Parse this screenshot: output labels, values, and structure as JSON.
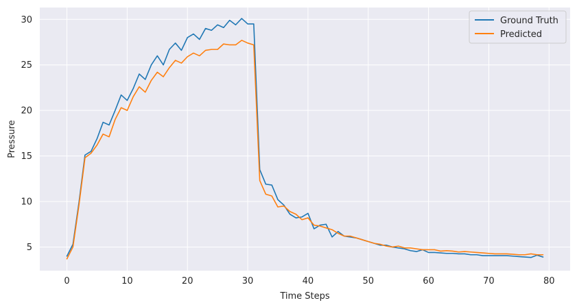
{
  "chart_data": {
    "type": "line",
    "title": "",
    "xlabel": "Time Steps",
    "ylabel": "Pressure",
    "xlim": [
      -4.5,
      83.5
    ],
    "ylim": [
      2.4,
      31.3
    ],
    "xticks": [
      0,
      10,
      20,
      30,
      40,
      50,
      60,
      70,
      80
    ],
    "yticks": [
      5,
      10,
      15,
      20,
      25,
      30
    ],
    "grid": true,
    "background": "#eaeaf2",
    "legend_position": "top-right",
    "series": [
      {
        "name": "Ground Truth",
        "color": "#1f77b4",
        "values": [
          4.0,
          5.3,
          9.9,
          15.1,
          15.5,
          16.9,
          18.7,
          18.4,
          20.0,
          21.7,
          21.1,
          22.4,
          24.0,
          23.4,
          25.0,
          26.0,
          25.0,
          26.7,
          27.4,
          26.6,
          28.0,
          28.4,
          27.8,
          29.0,
          28.8,
          29.4,
          29.1,
          29.9,
          29.4,
          30.1,
          29.5,
          29.5,
          13.5,
          11.9,
          11.8,
          10.2,
          9.6,
          8.6,
          8.2,
          8.3,
          8.7,
          7.0,
          7.4,
          7.5,
          6.1,
          6.7,
          6.2,
          6.1,
          6.0,
          5.8,
          5.6,
          5.4,
          5.2,
          5.2,
          5.0,
          4.9,
          4.8,
          4.6,
          4.5,
          4.7,
          4.4,
          4.4,
          4.35,
          4.3,
          4.3,
          4.25,
          4.25,
          4.15,
          4.15,
          4.05,
          4.05,
          4.05,
          4.05,
          4.05,
          4.0,
          3.95,
          3.9,
          3.85,
          4.1,
          3.9
        ]
      },
      {
        "name": "Predicted",
        "color": "#ff7f0e",
        "values": [
          3.7,
          5.0,
          9.6,
          14.8,
          15.3,
          16.2,
          17.4,
          17.1,
          19.0,
          20.3,
          20.0,
          21.5,
          22.6,
          22.0,
          23.3,
          24.2,
          23.7,
          24.7,
          25.5,
          25.2,
          25.9,
          26.3,
          26.0,
          26.6,
          26.7,
          26.7,
          27.3,
          27.2,
          27.2,
          27.7,
          27.4,
          27.2,
          12.3,
          10.8,
          10.6,
          9.4,
          9.5,
          8.9,
          8.6,
          8.0,
          8.2,
          7.4,
          7.3,
          7.1,
          6.9,
          6.5,
          6.2,
          6.2,
          6.0,
          5.8,
          5.6,
          5.4,
          5.3,
          5.1,
          5.0,
          5.1,
          4.9,
          4.9,
          4.8,
          4.7,
          4.7,
          4.7,
          4.55,
          4.6,
          4.55,
          4.45,
          4.5,
          4.45,
          4.4,
          4.35,
          4.3,
          4.25,
          4.25,
          4.25,
          4.2,
          4.15,
          4.15,
          4.25,
          4.15,
          4.15
        ]
      }
    ]
  }
}
